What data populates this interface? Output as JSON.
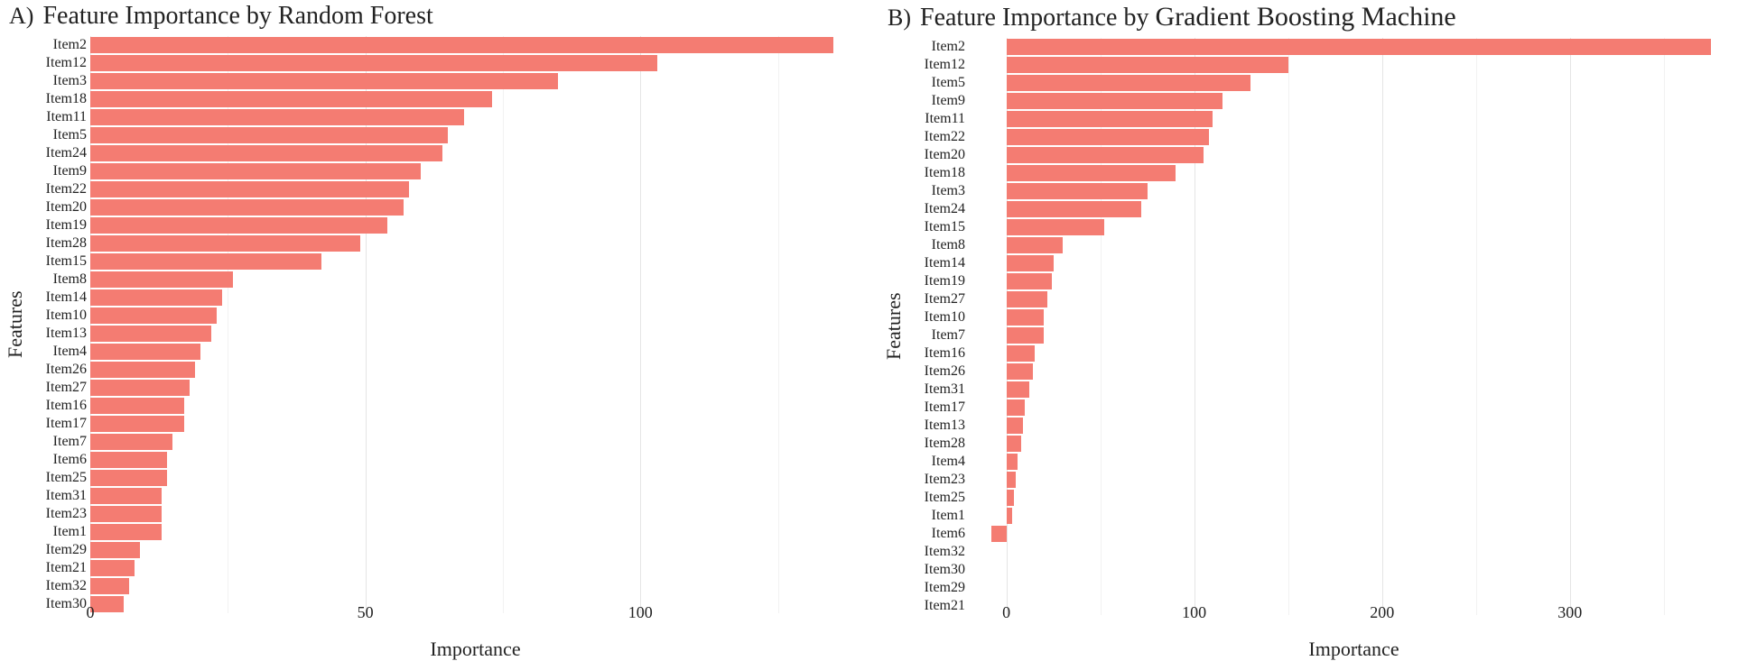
{
  "bar_color": "#f47c72",
  "background_color": "#ffffff",
  "grid_major_color": "#e5e5e5",
  "grid_minor_color": "#f2f2f2",
  "text_color": "#222222",
  "panels": {
    "a": {
      "letter": "A)",
      "title_prefix": "Feature Importance by ",
      "title_model": "Random Forest",
      "ylabel": "Features",
      "xlabel": "Importance",
      "xlim": [
        0,
        140
      ],
      "xticks_major": [
        0,
        50,
        100
      ],
      "xticks_minor": [
        25,
        75,
        125
      ],
      "items": [
        {
          "label": "Item2",
          "value": 135
        },
        {
          "label": "Item12",
          "value": 103
        },
        {
          "label": "Item3",
          "value": 85
        },
        {
          "label": "Item18",
          "value": 73
        },
        {
          "label": "Item11",
          "value": 68
        },
        {
          "label": "Item5",
          "value": 65
        },
        {
          "label": "Item24",
          "value": 64
        },
        {
          "label": "Item9",
          "value": 60
        },
        {
          "label": "Item22",
          "value": 58
        },
        {
          "label": "Item20",
          "value": 57
        },
        {
          "label": "Item19",
          "value": 54
        },
        {
          "label": "Item28",
          "value": 49
        },
        {
          "label": "Item15",
          "value": 42
        },
        {
          "label": "Item8",
          "value": 26
        },
        {
          "label": "Item14",
          "value": 24
        },
        {
          "label": "Item10",
          "value": 23
        },
        {
          "label": "Item13",
          "value": 22
        },
        {
          "label": "Item4",
          "value": 20
        },
        {
          "label": "Item26",
          "value": 19
        },
        {
          "label": "Item27",
          "value": 18
        },
        {
          "label": "Item16",
          "value": 17
        },
        {
          "label": "Item17",
          "value": 17
        },
        {
          "label": "Item7",
          "value": 15
        },
        {
          "label": "Item6",
          "value": 14
        },
        {
          "label": "Item25",
          "value": 14
        },
        {
          "label": "Item31",
          "value": 13
        },
        {
          "label": "Item23",
          "value": 13
        },
        {
          "label": "Item1",
          "value": 13
        },
        {
          "label": "Item29",
          "value": 9
        },
        {
          "label": "Item21",
          "value": 8
        },
        {
          "label": "Item32",
          "value": 7
        },
        {
          "label": "Item30",
          "value": 6
        }
      ]
    },
    "b": {
      "letter": "B)",
      "title_prefix": "Feature Importance by ",
      "title_model": "Gradient Boosting Machine",
      "ylabel": "Features",
      "xlabel": "Importance",
      "xlim": [
        -20,
        390
      ],
      "xticks_major": [
        0,
        100,
        200,
        300
      ],
      "xticks_minor": [
        50,
        150,
        250,
        350
      ],
      "items": [
        {
          "label": "Item2",
          "value": 375
        },
        {
          "label": "Item12",
          "value": 150
        },
        {
          "label": "Item5",
          "value": 130
        },
        {
          "label": "Item9",
          "value": 115
        },
        {
          "label": "Item11",
          "value": 110
        },
        {
          "label": "Item22",
          "value": 108
        },
        {
          "label": "Item20",
          "value": 105
        },
        {
          "label": "Item18",
          "value": 90
        },
        {
          "label": "Item3",
          "value": 75
        },
        {
          "label": "Item24",
          "value": 72
        },
        {
          "label": "Item15",
          "value": 52
        },
        {
          "label": "Item8",
          "value": 30
        },
        {
          "label": "Item14",
          "value": 25
        },
        {
          "label": "Item19",
          "value": 24
        },
        {
          "label": "Item27",
          "value": 22
        },
        {
          "label": "Item10",
          "value": 20
        },
        {
          "label": "Item7",
          "value": 20
        },
        {
          "label": "Item16",
          "value": 15
        },
        {
          "label": "Item26",
          "value": 14
        },
        {
          "label": "Item31",
          "value": 12
        },
        {
          "label": "Item17",
          "value": 10
        },
        {
          "label": "Item13",
          "value": 9
        },
        {
          "label": "Item28",
          "value": 8
        },
        {
          "label": "Item4",
          "value": 6
        },
        {
          "label": "Item23",
          "value": 5
        },
        {
          "label": "Item25",
          "value": 4
        },
        {
          "label": "Item1",
          "value": 3
        },
        {
          "label": "Item6",
          "value": -8
        },
        {
          "label": "Item32",
          "value": 0
        },
        {
          "label": "Item30",
          "value": 0
        },
        {
          "label": "Item29",
          "value": 0
        },
        {
          "label": "Item21",
          "value": 0
        }
      ]
    }
  }
}
